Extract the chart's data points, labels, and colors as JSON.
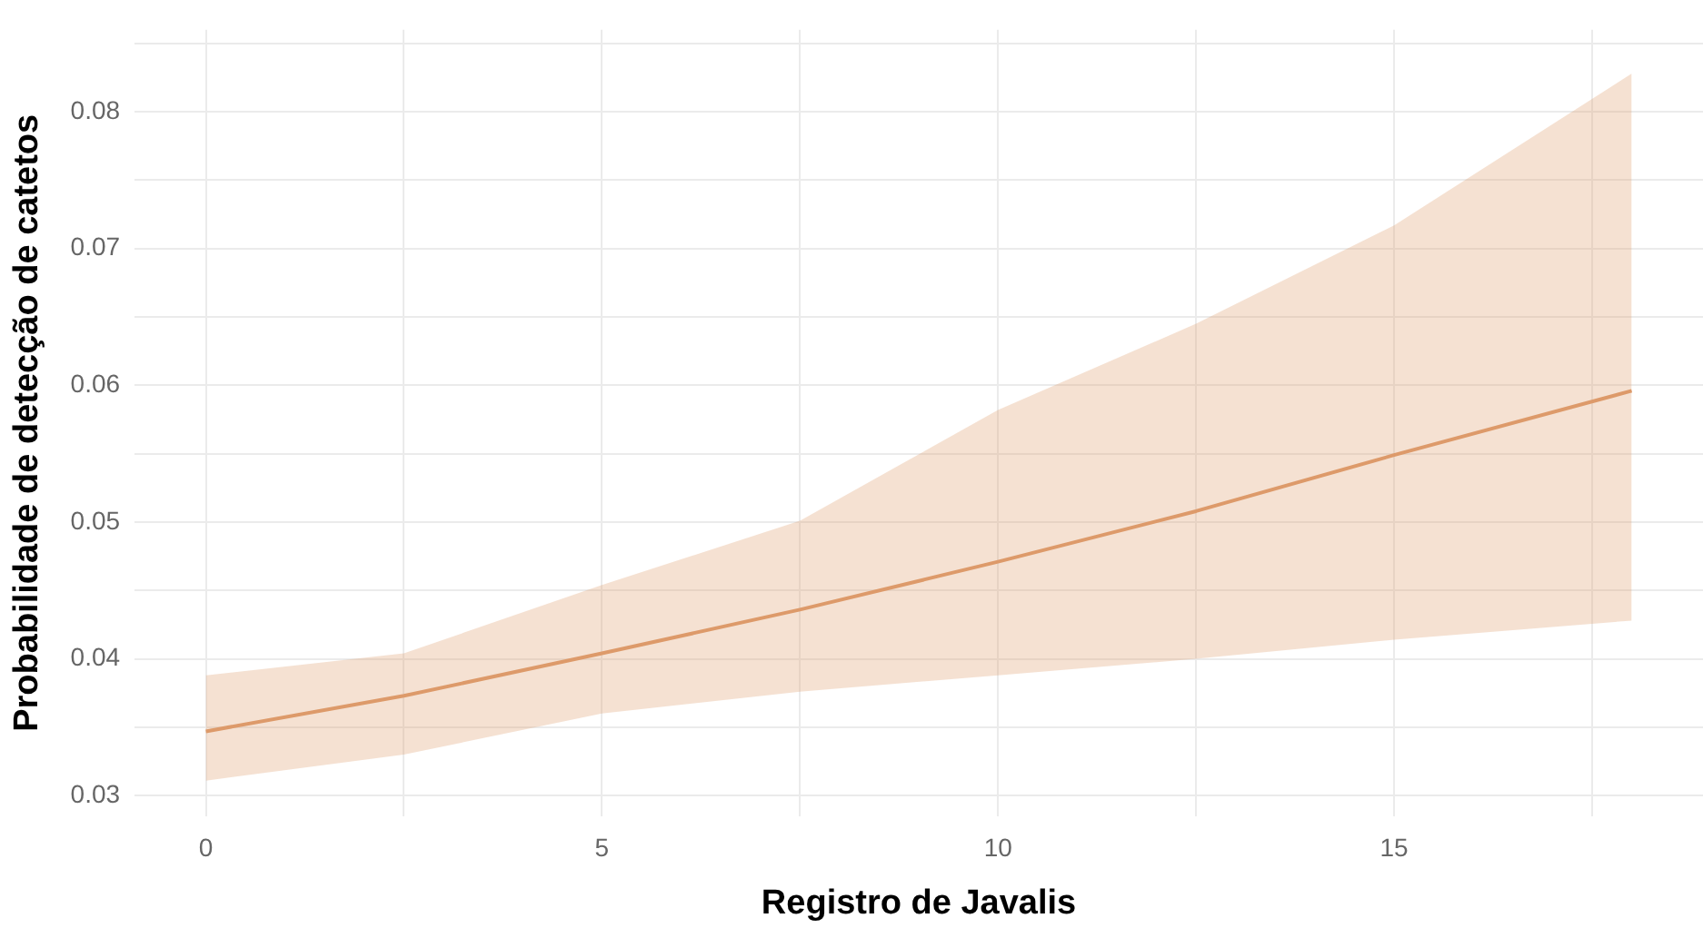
{
  "chart_data": {
    "type": "line",
    "xlabel": "Registro de Javalis",
    "ylabel": "Probabilidade de detecção de catetos",
    "x": [
      0,
      2.5,
      5,
      7.5,
      10,
      12.5,
      15,
      18
    ],
    "series": [
      {
        "color": "#dd9a6a",
        "values": [
          0.0347,
          0.0373,
          0.0404,
          0.0436,
          0.0471,
          0.0508,
          0.0549,
          0.0596
        ],
        "lower": [
          0.0311,
          0.033,
          0.036,
          0.0376,
          0.0388,
          0.04,
          0.0414,
          0.0428
        ],
        "upper": [
          0.0388,
          0.0404,
          0.0454,
          0.0501,
          0.0582,
          0.0645,
          0.0717,
          0.0828
        ]
      }
    ],
    "xlim": [
      -0.9,
      18.9
    ],
    "xticks": [
      0,
      {
        "value": 2.5,
        "label": null
      },
      5,
      {
        "value": 7.5,
        "label": null
      },
      10,
      {
        "value": 12.5,
        "label": null
      },
      15,
      {
        "value": 17.5,
        "label": null
      }
    ],
    "ylim": [
      0.0285,
      0.086
    ],
    "yticks": [
      0.03,
      {
        "value": 0.035,
        "label": null
      },
      0.04,
      {
        "value": 0.045,
        "label": null
      },
      0.05,
      {
        "value": 0.055,
        "label": null
      },
      0.06,
      {
        "value": 0.065,
        "label": null
      },
      0.07,
      {
        "value": 0.075,
        "label": null
      },
      0.08,
      {
        "value": 0.085,
        "label": null
      }
    ],
    "grid": true
  }
}
